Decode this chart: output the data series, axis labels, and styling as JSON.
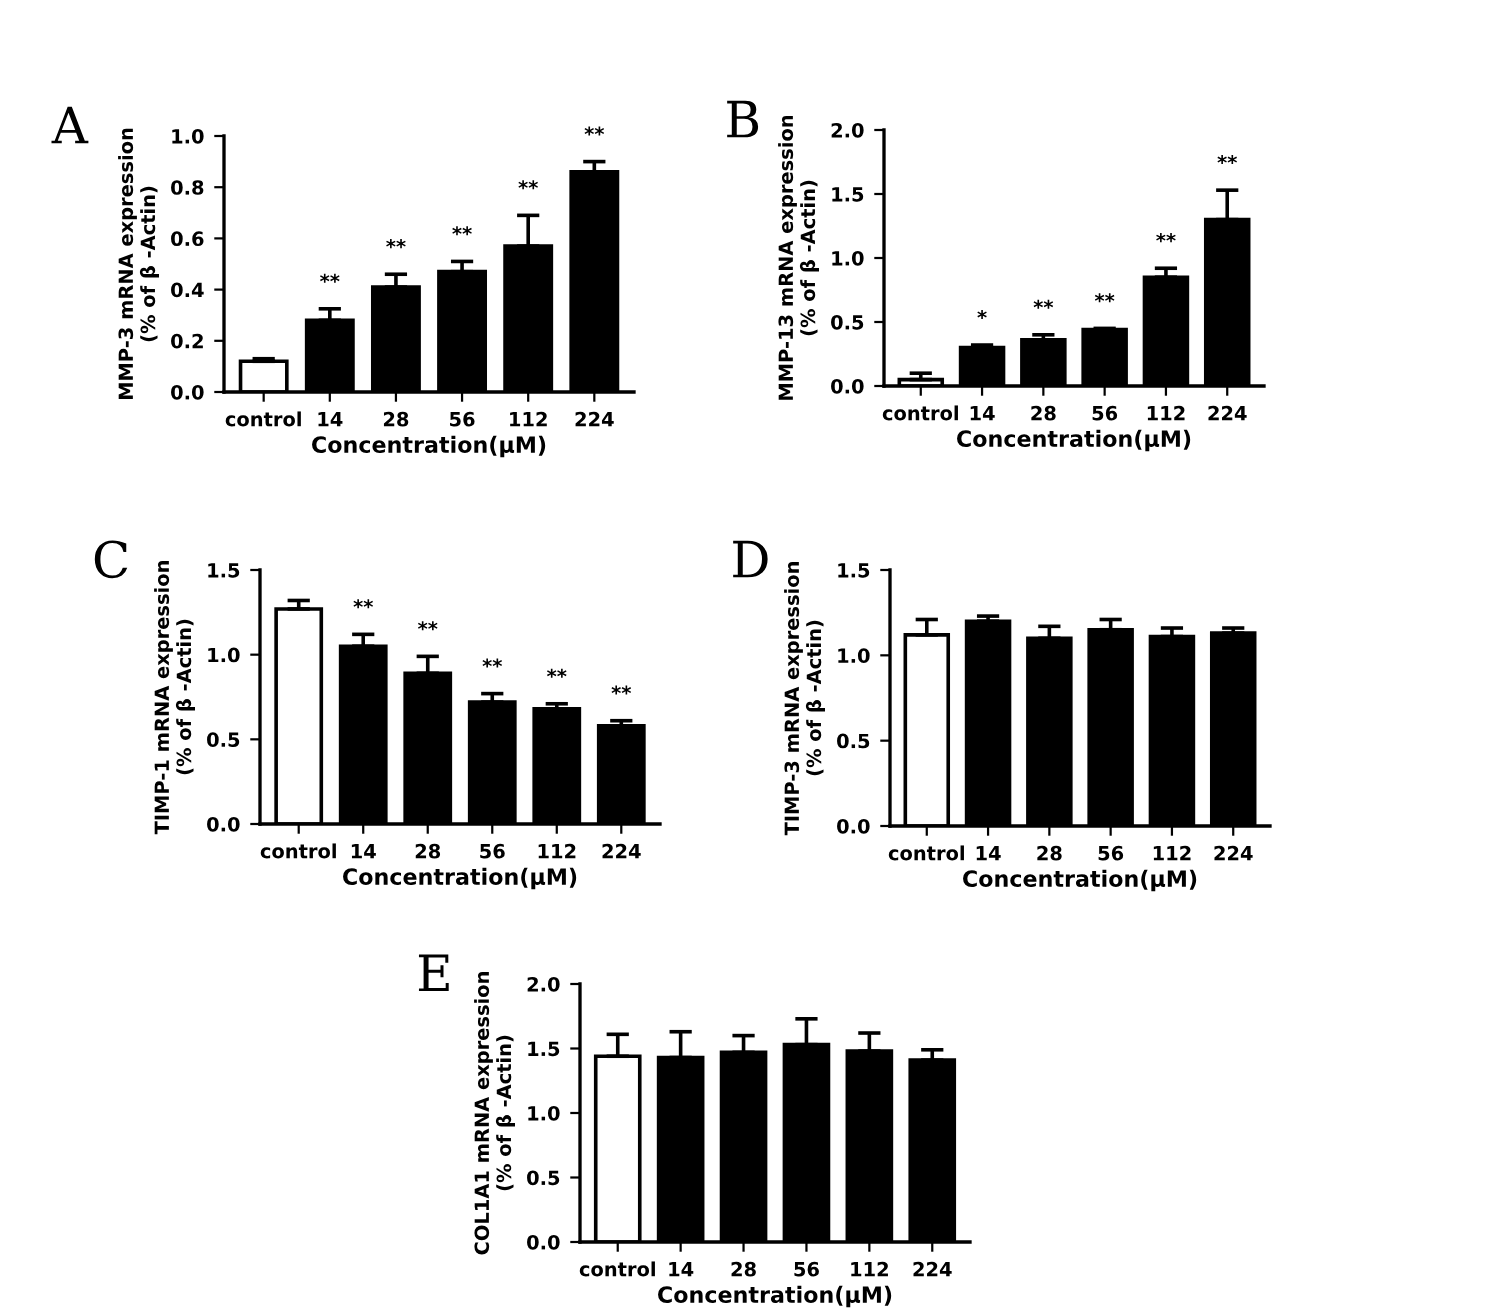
{
  "chart_data": [
    {
      "type": "bar",
      "title": "A",
      "xlabel": "Concentration(μM)",
      "ylabel": "MMP-3 mRNA expression\n(% of β -Actin)",
      "categories": [
        "control",
        "14",
        "28",
        "56",
        "112",
        "224"
      ],
      "values": [
        0.12,
        0.28,
        0.41,
        0.47,
        0.57,
        0.86
      ],
      "errors": [
        [
          0.12,
          0.13
        ],
        [
          0.28,
          0.325
        ],
        [
          0.41,
          0.46
        ],
        [
          0.47,
          0.51
        ],
        [
          0.57,
          0.69
        ],
        [
          0.86,
          0.9
        ]
      ],
      "value_labels": [
        null,
        "**",
        "**",
        "**",
        "**",
        "**"
      ],
      "colors": [
        "#ffffff",
        "#000000",
        "#000000",
        "#000000",
        "#000000",
        "#000000"
      ],
      "ylim": [
        0,
        1.0
      ],
      "yticks": [
        {
          "value": 0,
          "label": "0.0"
        },
        0.2,
        0.4,
        0.6,
        0.8,
        {
          "value": 1.0,
          "label": "1.0"
        }
      ]
    },
    {
      "type": "bar",
      "title": "B",
      "xlabel": "Concentration(μM)",
      "ylabel": "MMP-13 mRNA expression\n(% of β -Actin)",
      "categories": [
        "control",
        "14",
        "28",
        "56",
        "112",
        "224"
      ],
      "values": [
        0.05,
        0.3,
        0.36,
        0.44,
        0.85,
        1.3
      ],
      "errors": [
        [
          0.05,
          0.1
        ],
        [
          0.3,
          0.32
        ],
        [
          0.36,
          0.4
        ],
        [
          0.44,
          0.45
        ],
        [
          0.85,
          0.92
        ],
        [
          1.3,
          1.53
        ]
      ],
      "value_labels": [
        null,
        "*",
        "**",
        "**",
        "**",
        "**"
      ],
      "colors": [
        "#ffffff",
        "#000000",
        "#000000",
        "#000000",
        "#000000",
        "#000000"
      ],
      "ylim": [
        0,
        2.0
      ],
      "yticks": [
        {
          "value": 0,
          "label": "0.0"
        },
        0.5,
        {
          "value": 1.0,
          "label": "1.0"
        },
        1.5,
        {
          "value": 2.0,
          "label": "2.0"
        }
      ]
    },
    {
      "type": "bar",
      "title": "C",
      "xlabel": "Concentration(μM)",
      "ylabel": "TIMP-1 mRNA expression\n(% of β -Actin)",
      "categories": [
        "control",
        "14",
        "28",
        "56",
        "112",
        "224"
      ],
      "values": [
        1.27,
        1.05,
        0.89,
        0.72,
        0.68,
        0.58
      ],
      "errors": [
        [
          1.27,
          1.32
        ],
        [
          1.05,
          1.12
        ],
        [
          0.89,
          0.99
        ],
        [
          0.72,
          0.77
        ],
        [
          0.68,
          0.71
        ],
        [
          0.58,
          0.61
        ]
      ],
      "value_labels": [
        null,
        "**",
        "**",
        "**",
        "**",
        "**"
      ],
      "colors": [
        "#ffffff",
        "#000000",
        "#000000",
        "#000000",
        "#000000",
        "#000000"
      ],
      "ylim": [
        0,
        1.5
      ],
      "yticks": [
        {
          "value": 0,
          "label": "0.0"
        },
        0.5,
        {
          "value": 1.0,
          "label": "1.0"
        },
        1.5
      ]
    },
    {
      "type": "bar",
      "title": "D",
      "xlabel": "Concentration(μM)",
      "ylabel": "TIMP-3 mRNA expression\n(% of β -Actin)",
      "categories": [
        "control",
        "14",
        "28",
        "56",
        "112",
        "224"
      ],
      "values": [
        1.12,
        1.2,
        1.1,
        1.15,
        1.11,
        1.13
      ],
      "errors": [
        [
          1.12,
          1.21
        ],
        [
          1.2,
          1.23
        ],
        [
          1.1,
          1.17
        ],
        [
          1.15,
          1.21
        ],
        [
          1.11,
          1.16
        ],
        [
          1.13,
          1.16
        ]
      ],
      "colors": [
        "#ffffff",
        "#000000",
        "#000000",
        "#000000",
        "#000000",
        "#000000"
      ],
      "ylim": [
        0,
        1.5
      ],
      "yticks": [
        {
          "value": 0,
          "label": "0.0"
        },
        0.5,
        {
          "value": 1.0,
          "label": "1.0"
        },
        1.5
      ]
    },
    {
      "type": "bar",
      "title": "E",
      "xlabel": "Concentration(μM)",
      "ylabel": "COL1A1 mRNA expression\n(% of β -Actin)",
      "categories": [
        "control",
        "14",
        "28",
        "56",
        "112",
        "224"
      ],
      "values": [
        1.44,
        1.43,
        1.47,
        1.53,
        1.48,
        1.41
      ],
      "errors": [
        [
          1.44,
          1.61
        ],
        [
          1.43,
          1.63
        ],
        [
          1.47,
          1.6
        ],
        [
          1.53,
          1.73
        ],
        [
          1.48,
          1.62
        ],
        [
          1.41,
          1.49
        ]
      ],
      "colors": [
        "#ffffff",
        "#000000",
        "#000000",
        "#000000",
        "#000000",
        "#000000"
      ],
      "ylim": [
        0,
        2.0
      ],
      "yticks": [
        {
          "value": 0,
          "label": "0.0"
        },
        0.5,
        {
          "value": 1.0,
          "label": "1.0"
        },
        1.5,
        {
          "value": 2.0,
          "label": "2.0"
        }
      ]
    }
  ]
}
